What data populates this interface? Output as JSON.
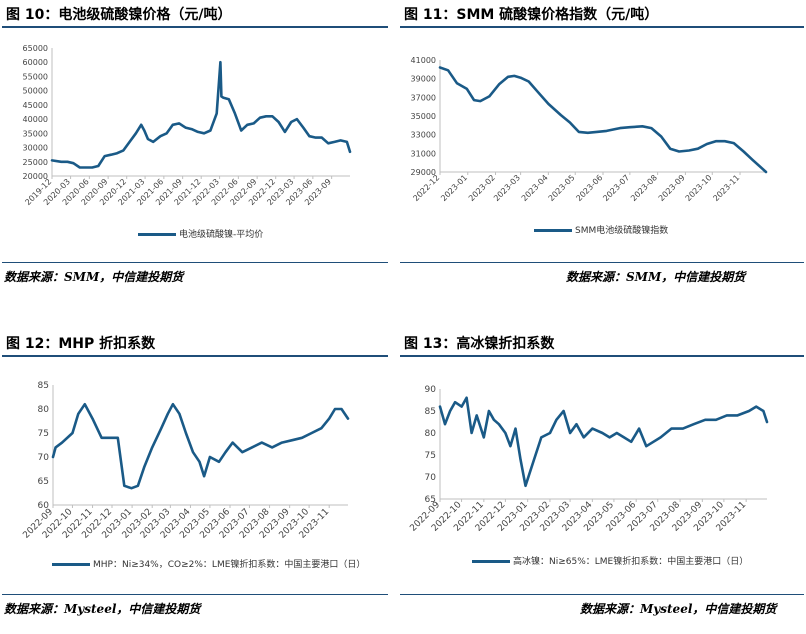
{
  "panels": [
    {
      "title": "图 10：电池级硫酸镍价格（元/吨）",
      "source": "数据来源：SMM，中信建投期货",
      "chart_data": {
        "type": "line",
        "title": "",
        "x_ticks": [
          "2019-12",
          "2020-03",
          "2020-06",
          "2020-09",
          "2020-12",
          "2021-03",
          "2021-06",
          "2021-09",
          "2021-12",
          "2022-03",
          "2022-06",
          "2022-09",
          "2022-12",
          "2023-03",
          "2023-06",
          "2023-09"
        ],
        "y_ticks": [
          20000,
          25000,
          30000,
          35000,
          40000,
          45000,
          50000,
          55000,
          60000,
          65000
        ],
        "ylim": [
          20000,
          65000
        ],
        "x_range": [
          "2019-12-01",
          "2023-11-30"
        ],
        "grid": false,
        "legend_position": "bottom",
        "color": "#1a5a87",
        "series": [
          {
            "name": "电池级硫酸镍-平均价",
            "x": [
              "2019-12-01",
              "2020-01-15",
              "2020-02-15",
              "2020-03-15",
              "2020-04-15",
              "2020-05-15",
              "2020-06-15",
              "2020-07-15",
              "2020-08-15",
              "2020-09-15",
              "2020-10-15",
              "2020-11-15",
              "2020-12-15",
              "2021-01-15",
              "2021-02-10",
              "2021-02-25",
              "2021-03-15",
              "2021-04-10",
              "2021-05-15",
              "2021-06-15",
              "2021-07-15",
              "2021-08-15",
              "2021-09-15",
              "2021-10-15",
              "2021-11-15",
              "2021-12-15",
              "2022-01-15",
              "2022-02-15",
              "2022-03-05",
              "2022-03-10",
              "2022-03-20",
              "2022-04-15",
              "2022-05-15",
              "2022-06-15",
              "2022-07-15",
              "2022-08-15",
              "2022-09-15",
              "2022-10-15",
              "2022-11-15",
              "2022-12-15",
              "2023-01-15",
              "2023-02-15",
              "2023-03-15",
              "2023-04-15",
              "2023-05-15",
              "2023-06-15",
              "2023-07-15",
              "2023-08-15",
              "2023-09-15",
              "2023-10-15",
              "2023-11-15",
              "2023-11-30"
            ],
            "y": [
              25500,
              25000,
              25000,
              24500,
              23000,
              23000,
              23000,
              23500,
              27000,
              27500,
              28000,
              29000,
              32000,
              35000,
              38000,
              36000,
              33000,
              32000,
              34000,
              35000,
              38000,
              38500,
              37000,
              36500,
              35500,
              35000,
              36000,
              42000,
              60000,
              48000,
              47500,
              47000,
              42000,
              36000,
              38000,
              38500,
              40500,
              41000,
              41000,
              39000,
              35500,
              39000,
              40000,
              37000,
              34000,
              33500,
              33500,
              31500,
              32000,
              32500,
              32000,
              28500
            ]
          }
        ]
      }
    },
    {
      "title": "图 11：SMM 硫酸镍价格指数（元/吨）",
      "source": "数据来源：SMM，中信建投期货",
      "chart_data": {
        "type": "line",
        "title": "",
        "x_ticks": [
          "2022-12",
          "2023-01",
          "2023-02",
          "2023-03",
          "2023-04",
          "2023-05",
          "2023-06",
          "2023-07",
          "2023-08",
          "2023-09",
          "2023-10",
          "2023-11"
        ],
        "y_ticks": [
          29000,
          31000,
          33000,
          35000,
          37000,
          39000,
          41000
        ],
        "ylim": [
          29000,
          41000
        ],
        "x_range": [
          "2022-12-01",
          "2023-11-30"
        ],
        "grid": false,
        "legend_position": "bottom",
        "color": "#1a5a87",
        "series": [
          {
            "name": "SMM电池级硫酸镍指数",
            "x": [
              "2022-12-01",
              "2022-12-10",
              "2022-12-20",
              "2022-12-31",
              "2023-01-08",
              "2023-01-15",
              "2023-01-25",
              "2023-02-05",
              "2023-02-15",
              "2023-02-22",
              "2023-03-01",
              "2023-03-10",
              "2023-03-20",
              "2023-04-01",
              "2023-04-15",
              "2023-04-25",
              "2023-05-05",
              "2023-05-15",
              "2023-05-25",
              "2023-06-05",
              "2023-06-20",
              "2023-07-01",
              "2023-07-15",
              "2023-07-25",
              "2023-08-05",
              "2023-08-15",
              "2023-08-25",
              "2023-09-05",
              "2023-09-15",
              "2023-09-25",
              "2023-10-05",
              "2023-10-15",
              "2023-10-25",
              "2023-11-05",
              "2023-11-15",
              "2023-11-30"
            ],
            "y": [
              40200,
              39900,
              38500,
              37900,
              36700,
              36600,
              37100,
              38400,
              39200,
              39300,
              39100,
              38700,
              37600,
              36300,
              35100,
              34300,
              33300,
              33200,
              33300,
              33400,
              33700,
              33800,
              33900,
              33700,
              32800,
              31500,
              31200,
              31300,
              31500,
              32000,
              32300,
              32300,
              32100,
              31200,
              30300,
              29000
            ]
          }
        ]
      }
    },
    {
      "title": "图 12：MHP 折扣系数",
      "source": "数据来源：Mysteel，中信建投期货",
      "chart_data": {
        "type": "line",
        "title": "",
        "x_ticks": [
          "2022-09",
          "2022-10",
          "2022-11",
          "2022-12",
          "2023-01",
          "2023-02",
          "2023-03",
          "2023-04",
          "2023-05",
          "2023-06",
          "2023-07",
          "2023-08",
          "2023-09",
          "2023-10",
          "2023-11"
        ],
        "y_ticks": [
          60,
          65,
          70,
          75,
          80,
          85
        ],
        "ylim": [
          60,
          85
        ],
        "x_range": [
          "2022-09-01",
          "2023-11-30"
        ],
        "grid": false,
        "legend_position": "bottom",
        "color": "#1a5a87",
        "series": [
          {
            "name": "MHP：Ni≥34%，CO≥2%：LME镍折扣系数：中国主要港口（日）",
            "x": [
              "2022-09-01",
              "2022-09-05",
              "2022-09-15",
              "2022-10-01",
              "2022-10-10",
              "2022-10-20",
              "2022-11-01",
              "2022-11-15",
              "2022-11-25",
              "2022-12-05",
              "2022-12-10",
              "2022-12-20",
              "2022-12-31",
              "2023-01-10",
              "2023-01-20",
              "2023-02-01",
              "2023-02-15",
              "2023-02-25",
              "2023-03-05",
              "2023-03-15",
              "2023-03-25",
              "2023-04-05",
              "2023-04-15",
              "2023-04-22",
              "2023-05-01",
              "2023-05-15",
              "2023-05-25",
              "2023-06-05",
              "2023-06-20",
              "2023-07-05",
              "2023-07-20",
              "2023-08-05",
              "2023-08-20",
              "2023-09-05",
              "2023-09-20",
              "2023-10-05",
              "2023-10-20",
              "2023-11-01",
              "2023-11-10",
              "2023-11-20",
              "2023-11-30"
            ],
            "y": [
              70,
              72,
              73,
              75,
              79,
              81,
              78,
              74,
              74,
              74,
              74,
              64,
              63.5,
              64,
              68,
              72,
              76,
              79,
              81,
              79,
              75,
              71,
              69,
              66,
              70,
              69,
              71,
              73,
              71,
              72,
              73,
              72,
              73,
              73.5,
              74,
              75,
              76,
              78,
              80,
              80,
              78
            ]
          }
        ]
      }
    },
    {
      "title": "图 13：高冰镍折扣系数",
      "source": "数据来源：Mysteel，中信建投期货",
      "chart_data": {
        "type": "line",
        "title": "",
        "x_ticks": [
          "2022-09",
          "2022-10",
          "2022-11",
          "2022-12",
          "2023-01",
          "2023-02",
          "2023-03",
          "2023-04",
          "2023-05",
          "2023-06",
          "2023-07",
          "2023-08",
          "2023-09",
          "2023-10",
          "2023-11"
        ],
        "y_ticks": [
          65,
          70,
          75,
          80,
          85,
          90
        ],
        "ylim": [
          65,
          90
        ],
        "x_range": [
          "2022-09-01",
          "2023-11-30"
        ],
        "grid": false,
        "legend_position": "bottom",
        "color": "#1a5a87",
        "series": [
          {
            "name": "高冰镍：Ni≥65%：LME镍折扣系数：中国主要港口（日）",
            "x": [
              "2022-09-01",
              "2022-09-08",
              "2022-09-15",
              "2022-09-22",
              "2022-10-01",
              "2022-10-08",
              "2022-10-15",
              "2022-10-22",
              "2022-11-01",
              "2022-11-08",
              "2022-11-15",
              "2022-11-22",
              "2022-12-01",
              "2022-12-08",
              "2022-12-15",
              "2022-12-22",
              "2022-12-29",
              "2023-01-10",
              "2023-01-20",
              "2023-02-01",
              "2023-02-10",
              "2023-02-20",
              "2023-03-01",
              "2023-03-10",
              "2023-03-20",
              "2023-04-01",
              "2023-04-15",
              "2023-04-25",
              "2023-05-05",
              "2023-05-15",
              "2023-05-25",
              "2023-06-05",
              "2023-06-15",
              "2023-06-25",
              "2023-07-05",
              "2023-07-20",
              "2023-08-05",
              "2023-08-20",
              "2023-09-05",
              "2023-09-20",
              "2023-10-05",
              "2023-10-20",
              "2023-11-05",
              "2023-11-15",
              "2023-11-25",
              "2023-11-30"
            ],
            "y": [
              86,
              82,
              85,
              87,
              86,
              88,
              80,
              84,
              79,
              85,
              83,
              82,
              80,
              77,
              81,
              74,
              68,
              74,
              79,
              80,
              83,
              85,
              80,
              82,
              79,
              81,
              80,
              79,
              80,
              79,
              78,
              81,
              77,
              78,
              79,
              81,
              81,
              82,
              83,
              83,
              84,
              84,
              85,
              86,
              85,
              82.5
            ]
          }
        ]
      }
    }
  ]
}
